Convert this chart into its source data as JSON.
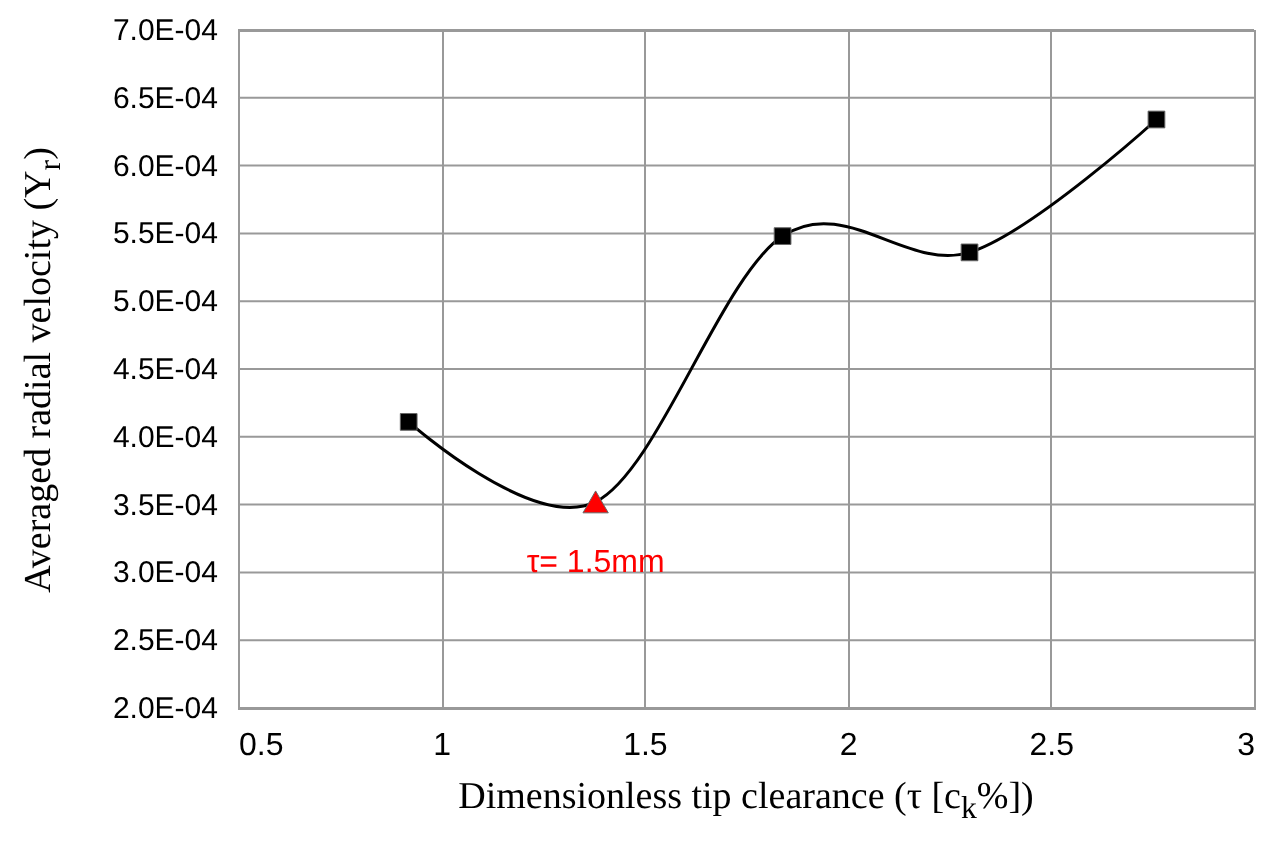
{
  "chart_data": {
    "type": "line",
    "xlabel": "Dimensionless tip clearance (τ [c$_{k}$%])",
    "ylabel": "Averaged radial velocity (Y$_{r}$)",
    "xlim": [
      0.5,
      3
    ],
    "xticks": [
      0.5,
      1,
      1.5,
      2,
      2.5,
      3
    ],
    "ylim": [
      0.0002,
      0.0007
    ],
    "yticks": [
      {
        "value": 0.0002,
        "label": "2.0E-04"
      },
      {
        "value": 0.00025,
        "label": "2.5E-04"
      },
      {
        "value": 0.0003,
        "label": "3.0E-04"
      },
      {
        "value": 0.00035,
        "label": "3.5E-04"
      },
      {
        "value": 0.0004,
        "label": "4.0E-04"
      },
      {
        "value": 0.00045,
        "label": "4.5E-04"
      },
      {
        "value": 0.0005,
        "label": "5.0E-04"
      },
      {
        "value": 0.00055,
        "label": "5.5E-04"
      },
      {
        "value": 0.0006,
        "label": "6.0E-04"
      },
      {
        "value": 0.00065,
        "label": "6.5E-04"
      },
      {
        "value": 0.0007,
        "label": "7.0E-04"
      }
    ],
    "grid": true,
    "series": [
      {
        "color": "#000000",
        "marker": "none",
        "x": [
          0.92,
          1.38,
          1.84,
          2.3,
          2.76
        ],
        "values": [
          0.000411,
          0.000352,
          0.000548,
          0.000536,
          0.000634
        ]
      },
      {
        "type": "scatter",
        "color": "#000000",
        "marker": "square",
        "x": [
          0.92,
          1.84,
          2.3,
          2.76
        ],
        "values": [
          0.000411,
          0.000548,
          0.000536,
          0.000634
        ]
      },
      {
        "type": "scatter",
        "color": "#ff0000",
        "marker": "triangle",
        "x": [
          1.38
        ],
        "values": [
          0.000352
        ]
      }
    ],
    "annotations": [
      {
        "text": "τ= 1.5mm",
        "x": 1.38,
        "y": 0.000352
      }
    ]
  }
}
